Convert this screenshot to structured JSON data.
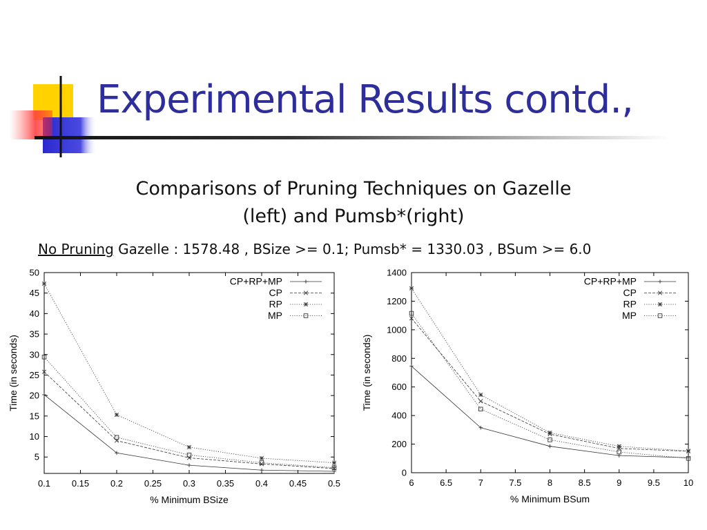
{
  "slide": {
    "title": "Experimental Results contd.,",
    "subtitle_line1": "Comparisons of Pruning Techniques on Gazelle",
    "subtitle_line2": "(left) and Pumsb*(right)",
    "info_underlined": "No Pruning",
    "info_rest": " Gazelle : 1578.48 , BSize >= 0.1; Pumsb* = 1330.03 , BSum >= 6.0"
  },
  "colors": {
    "title": "#2e2e9a",
    "logo_yellow": "#ffd200",
    "logo_blue": "#2a2ad0",
    "logo_red": "#ff3030"
  },
  "chart_data": [
    {
      "type": "line",
      "xlabel": "% Minimum BSize",
      "ylabel": "Time (in seconds)",
      "xlim": [
        0.1,
        0.5
      ],
      "ylim": [
        1,
        50
      ],
      "xticks": [
        "0.1",
        "0.15",
        "0.2",
        "0.25",
        "0.3",
        "0.35",
        "0.4",
        "0.45",
        "0.5"
      ],
      "yticks": [
        "5",
        "10",
        "15",
        "20",
        "25",
        "30",
        "35",
        "40",
        "45",
        "50"
      ],
      "grid": false,
      "legend": "top-right",
      "x": [
        0.1,
        0.2,
        0.3,
        0.4,
        0.5
      ],
      "series": [
        {
          "name": "CP+RP+MP",
          "values": [
            20.2,
            6.0,
            3.0,
            1.8,
            1.5
          ],
          "marker": "+",
          "dash": "solid"
        },
        {
          "name": "CP",
          "values": [
            25.8,
            9.0,
            4.8,
            3.3,
            2.2
          ],
          "marker": "x",
          "dash": "dashed"
        },
        {
          "name": "RP",
          "values": [
            47.3,
            15.3,
            7.4,
            4.7,
            3.6
          ],
          "marker": "*",
          "dash": "dotted"
        },
        {
          "name": "MP",
          "values": [
            29.4,
            9.8,
            5.5,
            3.6,
            2.4
          ],
          "marker": "square",
          "dash": "dotted"
        }
      ]
    },
    {
      "type": "line",
      "xlabel": "% Minimum BSum",
      "ylabel": "Time (in seconds)",
      "xlim": [
        6,
        10
      ],
      "ylim": [
        0,
        1400
      ],
      "xticks": [
        "6",
        "6.5",
        "7",
        "7.5",
        "8",
        "8.5",
        "9",
        "9.5",
        "10"
      ],
      "yticks": [
        "0",
        "200",
        "400",
        "600",
        "800",
        "1000",
        "1200",
        "1400"
      ],
      "grid": false,
      "legend": "top-right",
      "x": [
        6,
        7,
        8,
        9,
        10
      ],
      "series": [
        {
          "name": "CP+RP+MP",
          "values": [
            745,
            315,
            185,
            120,
            105
          ],
          "marker": "+",
          "dash": "solid"
        },
        {
          "name": "CP",
          "values": [
            1080,
            500,
            270,
            170,
            150
          ],
          "marker": "x",
          "dash": "dashed"
        },
        {
          "name": "RP",
          "values": [
            1290,
            545,
            280,
            185,
            152
          ],
          "marker": "*",
          "dash": "dotted"
        },
        {
          "name": "MP",
          "values": [
            1115,
            445,
            230,
            145,
            100
          ],
          "marker": "square",
          "dash": "dotted"
        }
      ]
    }
  ]
}
